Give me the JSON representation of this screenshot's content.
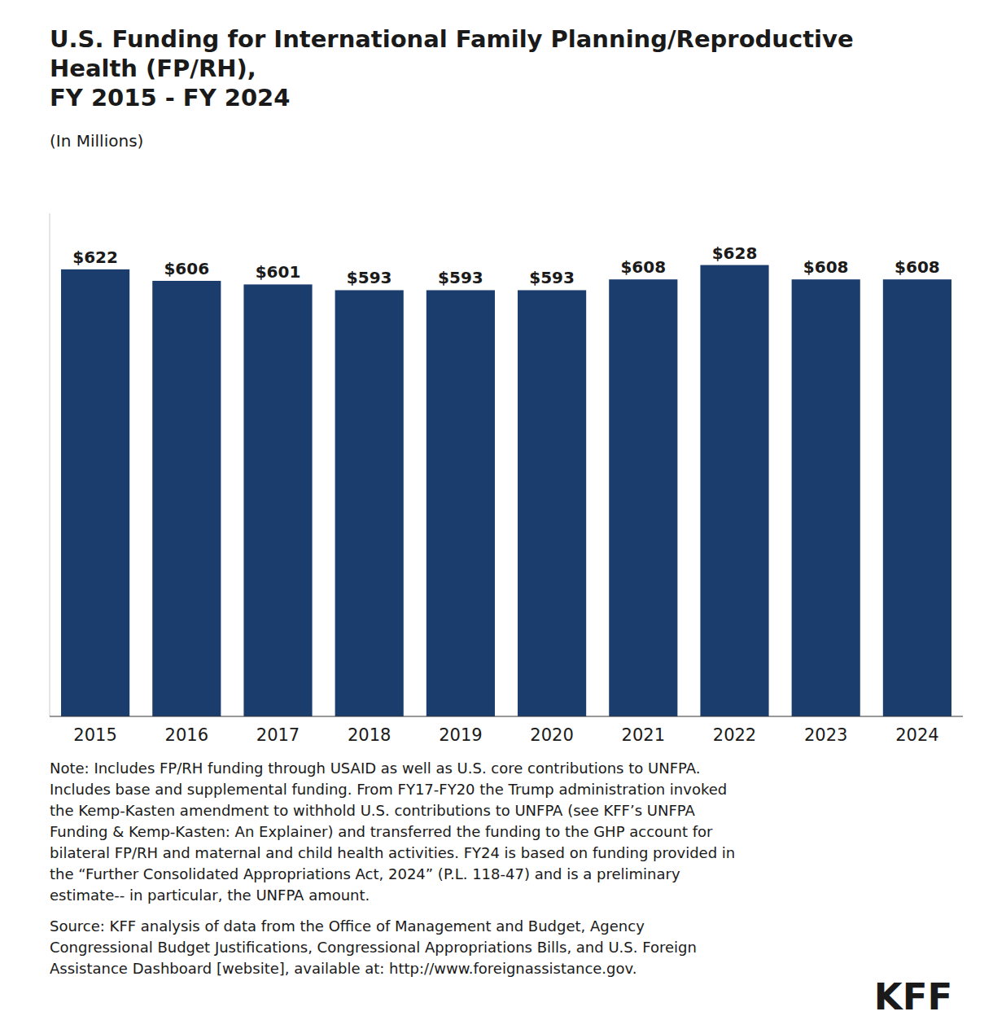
{
  "chart_data": {
    "type": "bar",
    "title": "U.S. Funding for International Family Planning/Reproductive\nHealth (FP/RH),\nFY 2015 - FY 2024",
    "subtitle": "(In Millions)",
    "categories": [
      "2015",
      "2016",
      "2017",
      "2018",
      "2019",
      "2020",
      "2021",
      "2022",
      "2023",
      "2024"
    ],
    "values": [
      622,
      606,
      601,
      593,
      593,
      593,
      608,
      628,
      608,
      608
    ],
    "value_labels": [
      "$622",
      "$606",
      "$601",
      "$593",
      "$593",
      "$593",
      "$608",
      "$628",
      "$608",
      "$608"
    ],
    "data_labels": true,
    "color": "#1a3d6e",
    "ylim": [
      0,
      700
    ],
    "yticks": [],
    "tick_labels": "x",
    "grid": false,
    "note": "Note: Includes FP/RH funding through USAID as well as U.S. core contributions to UNFPA.\nIncludes base and supplemental funding. From FY17-FY20 the Trump administration invoked\nthe Kemp-Kasten amendment to withhold U.S. contributions to UNFPA (see KFF’s UNFPA\nFunding & Kemp-Kasten: An Explainer) and transferred the funding to the GHP account for\nbilateral FP/RH and maternal and child health activities. FY24 is based on funding provided in\nthe “Further Consolidated Appropriations Act, 2024” (P.L. 118-47) and is a preliminary\nestimate-- in particular, the UNFPA amount.",
    "source": "Source: KFF analysis of data from the Office of Management and Budget, Agency\nCongressional Budget Justifications, Congressional Appropriations Bills, and U.S. Foreign\nAssistance Dashboard [website], available at: http://www.foreignassistance.gov.",
    "logo": "KFF"
  }
}
